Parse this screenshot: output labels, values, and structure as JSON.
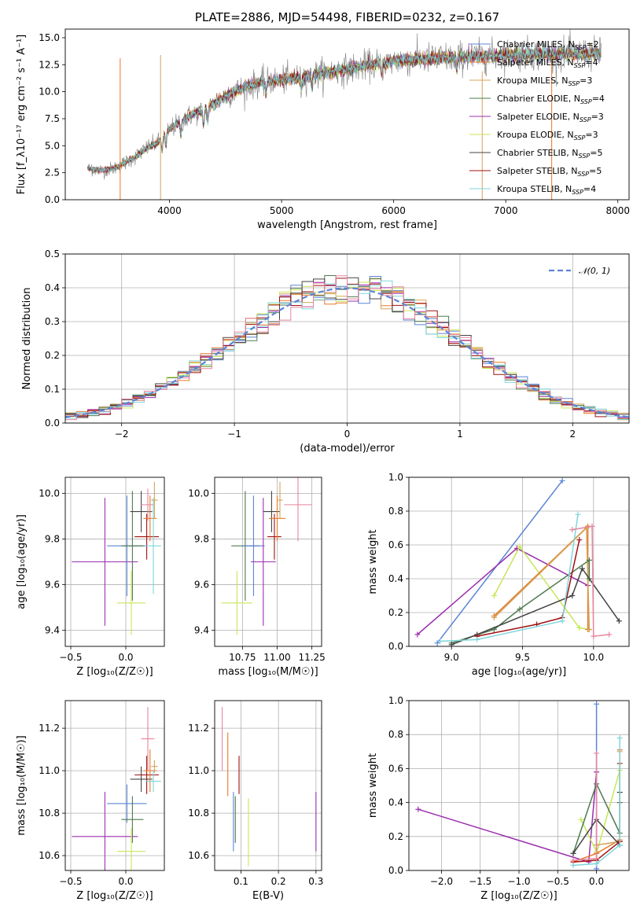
{
  "colors": [
    "#5b84d6",
    "#e8782a",
    "#d4a35a",
    "#4e7a4e",
    "#9b2fae",
    "#c8e65a",
    "#444444",
    "#a01010",
    "#7fd6dc",
    "#e8859e"
  ],
  "chart_data": [
    {
      "id": "spectrum",
      "type": "line",
      "title": "PLATE=2886, MJD=54498, FIBERID=0232, z=0.167",
      "xlabel": "wavelength [Angstrom, rest frame]",
      "ylabel": "Flux [f_λ10⁻¹⁷ erg cm⁻² s⁻¹ A⁻¹]",
      "xlim": [
        3070,
        8100
      ],
      "ylim": [
        0,
        15.8
      ],
      "xticks": [
        4000,
        5000,
        6000,
        7000,
        8000
      ],
      "yticks": [
        0.0,
        2.5,
        5.0,
        7.5,
        10.0,
        12.5,
        15.0
      ],
      "legend_position": "upper-right",
      "series": [
        {
          "name": "Chabrier MILES, N_SSP=2"
        },
        {
          "name": "Salpeter MILES, N_SSP=4"
        },
        {
          "name": "Kroupa MILES, N_SSP=3"
        },
        {
          "name": "Chabrier ELODIE, N_SSP=4"
        },
        {
          "name": "Salpeter ELODIE, N_SSP=3"
        },
        {
          "name": "Kroupa ELODIE, N_SSP=3"
        },
        {
          "name": "Chabrier STELIB, N_SSP=5"
        },
        {
          "name": "Salpeter STELIB, N_SSP=5"
        },
        {
          "name": "Kroupa STELIB, N_SSP=4"
        }
      ],
      "continuum": {
        "x": [
          3270,
          3400,
          3500,
          3600,
          3700,
          3800,
          3900,
          4000,
          4100,
          4200,
          4300,
          4400,
          4500,
          4600,
          4700,
          4800,
          4900,
          5000,
          5200,
          5400,
          5600,
          5800,
          6000,
          6200,
          6400,
          6600,
          6800,
          7000,
          7200,
          7400,
          7600,
          7850
        ],
        "y": [
          2.9,
          2.7,
          2.9,
          3.4,
          4.0,
          4.8,
          5.3,
          6.5,
          7.2,
          7.9,
          8.2,
          8.9,
          9.6,
          10.1,
          10.5,
          10.8,
          11.0,
          11.1,
          11.4,
          11.8,
          12.1,
          12.5,
          12.8,
          13.0,
          13.1,
          13.2,
          13.3,
          13.4,
          13.5,
          13.5,
          13.5,
          13.5
        ]
      },
      "data_line": {
        "color": "#7f7f7f"
      }
    },
    {
      "id": "residuals",
      "type": "histogram",
      "xlabel": "(data-model)/error",
      "ylabel": "Normed distribution",
      "xlim": [
        -2.5,
        2.5
      ],
      "ylim": [
        0,
        0.5
      ],
      "xticks": [
        -2,
        -1,
        0,
        1,
        2
      ],
      "yticks": [
        0.0,
        0.1,
        0.2,
        0.3,
        0.4,
        0.5
      ],
      "grid": true,
      "legend_position": "upper-right",
      "legend": "𝒩(0, 1)",
      "bin_width": 0.1
    },
    {
      "id": "age-vs-Z",
      "type": "errorbar",
      "xlabel": "Z [log₁₀(Z/Z☉)]",
      "ylabel": "age  [log₁₀(age/yr)]",
      "xlim": [
        -0.55,
        0.35
      ],
      "ylim": [
        9.33,
        10.07
      ],
      "xticks": [
        -0.5,
        0.0,
        0.5
      ],
      "yticks": [
        9.4,
        9.6,
        9.8,
        10.0
      ],
      "grid": true,
      "points": [
        {
          "x": -0.19,
          "y": 9.7,
          "xerr": 0.3,
          "yerr": 0.28,
          "c": 4
        },
        {
          "x": 0.01,
          "y": 9.77,
          "xerr": 0.18,
          "yerr": 0.22,
          "c": 0
        },
        {
          "x": 0.06,
          "y": 9.77,
          "xerr": 0.1,
          "yerr": 0.24,
          "c": 3
        },
        {
          "x": 0.05,
          "y": 9.52,
          "xerr": 0.13,
          "yerr": 0.14,
          "c": 5
        },
        {
          "x": 0.14,
          "y": 9.92,
          "xerr": 0.1,
          "yerr": 0.09,
          "c": 6
        },
        {
          "x": 0.19,
          "y": 9.81,
          "xerr": 0.11,
          "yerr": 0.1,
          "c": 7
        },
        {
          "x": 0.22,
          "y": 9.89,
          "xerr": 0.06,
          "yerr": 0.1,
          "c": 1
        },
        {
          "x": 0.2,
          "y": 9.95,
          "xerr": 0.06,
          "yerr": 0.07,
          "c": 9
        },
        {
          "x": 0.25,
          "y": 9.77,
          "xerr": 0.07,
          "yerr": 0.21,
          "c": 8
        },
        {
          "x": 0.26,
          "y": 9.97,
          "xerr": 0.03,
          "yerr": 0.08,
          "c": 2
        }
      ]
    },
    {
      "id": "age-vs-mass",
      "type": "errorbar",
      "xlabel": "mass [log₁₀(M/M☉)]",
      "ylabel": "",
      "xlim": [
        10.55,
        11.32
      ],
      "ylim": [
        9.33,
        10.07
      ],
      "xticks": [
        10.75,
        11.0,
        11.25
      ],
      "xticklabels": [
        "10.75",
        "11.00",
        "11.25"
      ],
      "yticks": [
        9.4,
        9.6,
        9.8,
        10.0
      ],
      "grid": true,
      "points": [
        {
          "x": 10.71,
          "y": 9.52,
          "xerr": 0.11,
          "yerr": 0.14,
          "c": 5
        },
        {
          "x": 10.77,
          "y": 9.77,
          "xerr": 0.1,
          "yerr": 0.24,
          "c": 3
        },
        {
          "x": 10.83,
          "y": 9.77,
          "xerr": 0.08,
          "yerr": 0.22,
          "c": 0
        },
        {
          "x": 10.9,
          "y": 9.7,
          "xerr": 0.09,
          "yerr": 0.28,
          "c": 4
        },
        {
          "x": 10.96,
          "y": 9.92,
          "xerr": 0.06,
          "yerr": 0.09,
          "c": 6
        },
        {
          "x": 10.98,
          "y": 9.81,
          "xerr": 0.05,
          "yerr": 0.1,
          "c": 7
        },
        {
          "x": 11.0,
          "y": 9.89,
          "xerr": 0.06,
          "yerr": 0.1,
          "c": 1
        },
        {
          "x": 11.02,
          "y": 9.97,
          "xerr": 0.02,
          "yerr": 0.08,
          "c": 2
        },
        {
          "x": 11.15,
          "y": 9.95,
          "xerr": 0.1,
          "yerr": 0.16,
          "c": 9
        }
      ]
    },
    {
      "id": "mass-weight-vs-age",
      "type": "line",
      "xlabel": "age  [log₁₀(age/yr)]",
      "ylabel": "mass weight",
      "xlim": [
        8.7,
        10.25
      ],
      "ylim": [
        0,
        1.0
      ],
      "xticks": [
        9.0,
        9.5,
        10.0
      ],
      "yticks": [
        0.0,
        0.2,
        0.4,
        0.6,
        0.8,
        1.0
      ],
      "grid": true,
      "series": [
        {
          "c": 0,
          "x": [
            8.9,
            9.78
          ],
          "y": [
            0.02,
            0.98
          ]
        },
        {
          "c": 4,
          "x": [
            8.76,
            9.46,
            9.96
          ],
          "y": [
            0.07,
            0.58,
            0.36
          ]
        },
        {
          "c": 5,
          "x": [
            9.3,
            9.48,
            9.9,
            9.97
          ],
          "y": [
            0.3,
            0.59,
            0.11,
            0.1
          ]
        },
        {
          "c": 1,
          "x": [
            9.3,
            9.96,
            9.96
          ],
          "y": [
            0.18,
            0.71,
            0.1
          ]
        },
        {
          "c": 2,
          "x": [
            9.3,
            9.95,
            9.97
          ],
          "y": [
            0.17,
            0.7,
            0.1
          ]
        },
        {
          "c": 3,
          "x": [
            9.0,
            9.3,
            9.48,
            9.97,
            9.97
          ],
          "y": [
            0.02,
            0.1,
            0.22,
            0.51,
            0.4
          ]
        },
        {
          "c": 6,
          "x": [
            9.0,
            9.18,
            9.85,
            9.92,
            10.18
          ],
          "y": [
            0.01,
            0.07,
            0.3,
            0.46,
            0.15
          ]
        },
        {
          "c": 7,
          "x": [
            9.18,
            9.6,
            9.78,
            9.9
          ],
          "y": [
            0.06,
            0.13,
            0.17,
            0.63
          ]
        },
        {
          "c": 8,
          "x": [
            8.92,
            9.18,
            9.78,
            9.89
          ],
          "y": [
            0.03,
            0.04,
            0.15,
            0.78
          ]
        },
        {
          "c": 9,
          "x": [
            9.85,
            9.99,
            10.0,
            10.11
          ],
          "y": [
            0.69,
            0.71,
            0.06,
            0.07
          ]
        }
      ]
    },
    {
      "id": "mass-vs-Z",
      "type": "errorbar",
      "xlabel": "Z [log₁₀(Z/Z☉)]",
      "ylabel": "mass [log₁₀(M/M☉)]",
      "xlim": [
        -0.55,
        0.35
      ],
      "ylim": [
        10.53,
        11.33
      ],
      "xticks": [
        -0.5,
        0.0,
        0.5
      ],
      "yticks": [
        10.6,
        10.8,
        11.0,
        11.2
      ],
      "grid": true,
      "points": [
        {
          "x": -0.19,
          "y": 10.69,
          "xerr": 0.3,
          "yerr": 0.21,
          "c": 4
        },
        {
          "x": 0.01,
          "y": 10.845,
          "xerr": 0.18,
          "yerr": 0.09,
          "c": 0
        },
        {
          "x": 0.06,
          "y": 10.77,
          "xerr": 0.1,
          "yerr": 0.11,
          "c": 3
        },
        {
          "x": 0.05,
          "y": 10.62,
          "xerr": 0.13,
          "yerr": 0.11,
          "c": 5
        },
        {
          "x": 0.14,
          "y": 10.96,
          "xerr": 0.1,
          "yerr": 0.06,
          "c": 6
        },
        {
          "x": 0.19,
          "y": 10.98,
          "xerr": 0.11,
          "yerr": 0.09,
          "c": 7
        },
        {
          "x": 0.22,
          "y": 11.0,
          "xerr": 0.06,
          "yerr": 0.1,
          "c": 1
        },
        {
          "x": 0.2,
          "y": 11.15,
          "xerr": 0.06,
          "yerr": 0.15,
          "c": 9
        },
        {
          "x": 0.25,
          "y": 10.95,
          "xerr": 0.07,
          "yerr": 0.05,
          "c": 8
        },
        {
          "x": 0.26,
          "y": 11.02,
          "xerr": 0.03,
          "yerr": 0.03,
          "c": 2
        }
      ]
    },
    {
      "id": "mass-vs-ebv",
      "type": "errorbar",
      "xlabel": "E(B-V)",
      "ylabel": "",
      "xlim": [
        0.03,
        0.315
      ],
      "ylim": [
        10.53,
        11.33
      ],
      "xticks": [
        0.1,
        0.2,
        0.3
      ],
      "yticks": [
        10.6,
        10.8,
        11.0,
        11.2
      ],
      "grid": true,
      "points": [
        {
          "x": 0.05,
          "y": 11.15,
          "xerr": 0,
          "yerr": 0.15,
          "c": 9
        },
        {
          "x": 0.065,
          "y": 11.03,
          "xerr": 0,
          "yerr": 0.15,
          "c": 1
        },
        {
          "x": 0.08,
          "y": 10.76,
          "xerr": 0,
          "yerr": 0.14,
          "c": 0
        },
        {
          "x": 0.085,
          "y": 10.77,
          "xerr": 0,
          "yerr": 0.11,
          "c": 3
        },
        {
          "x": 0.095,
          "y": 10.98,
          "xerr": 0,
          "yerr": 0.09,
          "c": 7
        },
        {
          "x": 0.12,
          "y": 10.71,
          "xerr": 0,
          "yerr": 0.16,
          "c": 5
        },
        {
          "x": 0.3,
          "y": 10.76,
          "xerr": 0,
          "yerr": 0.14,
          "c": 4
        }
      ]
    },
    {
      "id": "mass-weight-vs-Z",
      "type": "line",
      "xlabel": "Z [log₁₀(Z/Z☉)]",
      "ylabel": "mass weight",
      "xlim": [
        -2.42,
        0.42
      ],
      "ylim": [
        0,
        1.0
      ],
      "xticks": [
        -2.0,
        -1.5,
        -1.0,
        -0.5,
        0.0
      ],
      "yticks": [
        0.0,
        0.2,
        0.4,
        0.6,
        0.8,
        1.0
      ],
      "grid": true,
      "series": [
        {
          "c": 0,
          "x": [
            0.0,
            0.0
          ],
          "y": [
            0.01,
            0.98
          ]
        },
        {
          "c": 4,
          "x": [
            -2.3,
            -0.1,
            0.0
          ],
          "y": [
            0.36,
            0.05,
            0.58
          ]
        },
        {
          "c": 5,
          "x": [
            -0.2,
            0.0,
            0.0,
            0.3
          ],
          "y": [
            0.3,
            0.11,
            0.1,
            0.59
          ]
        },
        {
          "c": 1,
          "x": [
            -0.3,
            0.0,
            0.3,
            0.3
          ],
          "y": [
            0.05,
            0.1,
            0.18,
            0.71
          ]
        },
        {
          "c": 2,
          "x": [
            0.0,
            0.3,
            0.3
          ],
          "y": [
            0.15,
            0.17,
            0.7
          ]
        },
        {
          "c": 3,
          "x": [
            -0.3,
            0.0,
            0.3,
            0.3
          ],
          "y": [
            0.1,
            0.51,
            0.22,
            0.4
          ]
        },
        {
          "c": 6,
          "x": [
            -0.3,
            0.0,
            0.3,
            0.3
          ],
          "y": [
            0.1,
            0.3,
            0.15,
            0.46
          ]
        },
        {
          "c": 7,
          "x": [
            -0.3,
            0.0,
            0.3,
            0.3
          ],
          "y": [
            0.05,
            0.06,
            0.17,
            0.63
          ]
        },
        {
          "c": 8,
          "x": [
            -0.3,
            0.0,
            0.3,
            0.3
          ],
          "y": [
            0.03,
            0.04,
            0.15,
            0.78
          ]
        },
        {
          "c": 9,
          "x": [
            -0.3,
            0.0,
            0.0
          ],
          "y": [
            0.06,
            0.07,
            0.69
          ]
        }
      ]
    }
  ]
}
